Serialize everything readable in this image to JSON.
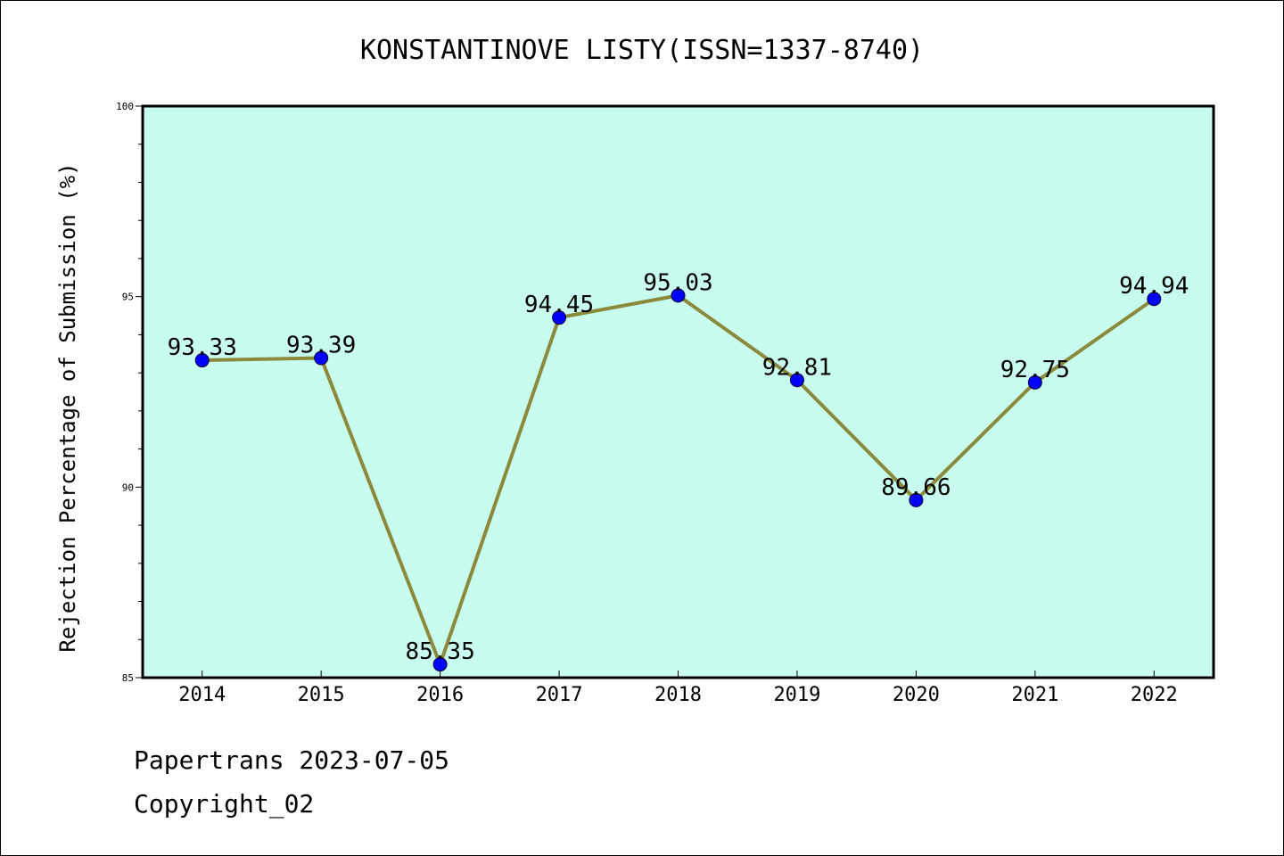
{
  "chart_data": {
    "type": "line",
    "title": "KONSTANTINOVE LISTY(ISSN=1337-8740)",
    "ylabel": "Rejection Percentage of Submission (%)",
    "xlabel": "",
    "categories": [
      "2014",
      "2015",
      "2016",
      "2017",
      "2018",
      "2019",
      "2020",
      "2021",
      "2022"
    ],
    "values": [
      93.33,
      93.39,
      85.35,
      94.45,
      95.03,
      92.81,
      89.66,
      92.75,
      94.94
    ],
    "data_labels": [
      "93.33",
      "93.39",
      "85.35",
      "94.45",
      "95.03",
      "92.81",
      "89.66",
      "92.75",
      "94.94"
    ],
    "ylim": [
      85,
      100
    ],
    "y_ticks": [
      85,
      90,
      95,
      100
    ],
    "y_tick_labels": [
      "85",
      "90",
      "95",
      "100"
    ],
    "grid": false,
    "colors": {
      "plot_background": "#c8fcee",
      "line": "#8b8a3c",
      "marker": "#0000ff"
    }
  },
  "footer": {
    "line1": "Papertrans 2023-07-05",
    "line2": "Copyright_02"
  }
}
